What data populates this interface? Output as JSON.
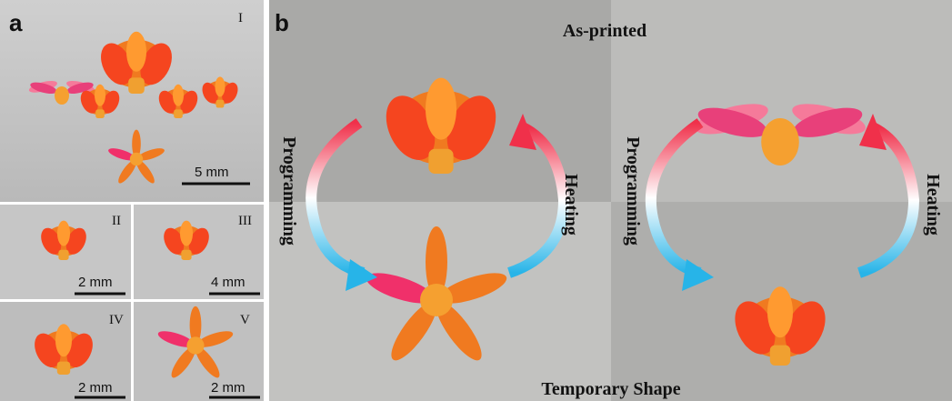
{
  "panel_a": {
    "label": "a",
    "main": {
      "roman": "I",
      "scale": "5 mm"
    },
    "subpanels": [
      {
        "roman": "II",
        "scale": "2 mm"
      },
      {
        "roman": "III",
        "scale": "4 mm"
      },
      {
        "roman": "IV",
        "scale": "2 mm"
      },
      {
        "roman": "V",
        "scale": "2 mm"
      }
    ]
  },
  "panel_b": {
    "label": "b",
    "title": "As-printed",
    "caption": "Temporary Shape",
    "left": {
      "left_label": "Programming",
      "right_label": "Heating"
    },
    "right": {
      "left_label": "Programming",
      "right_label": "Heating"
    }
  }
}
